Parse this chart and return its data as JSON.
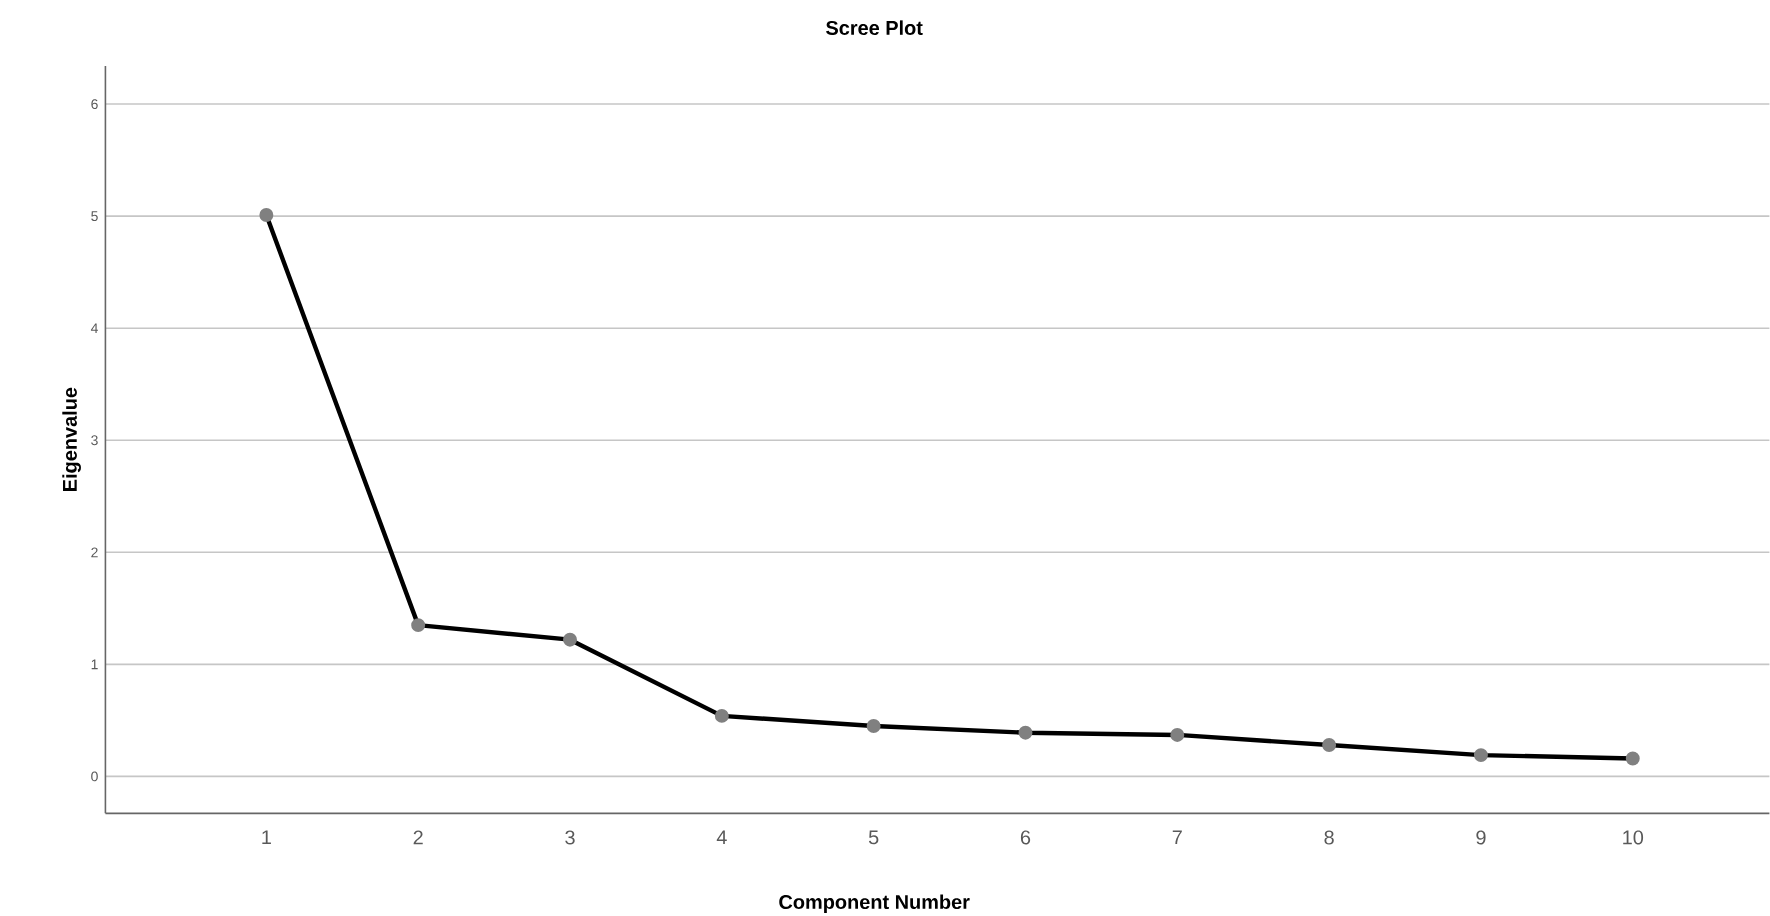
{
  "chart_data": {
    "type": "line",
    "title": "Scree Plot",
    "xlabel": "Component Number",
    "ylabel": "Eigenvalue",
    "categories": [
      "1",
      "2",
      "3",
      "4",
      "5",
      "6",
      "7",
      "8",
      "9",
      "10"
    ],
    "series": [
      {
        "color": "#000000",
        "values": [
          5.01,
          1.35,
          1.22,
          0.54,
          0.45,
          0.39,
          0.37,
          0.28,
          0.19,
          0.16
        ]
      }
    ],
    "ylim": [
      -0.33,
      6.34
    ],
    "yticks": [
      0,
      1,
      2,
      3,
      4,
      5,
      6
    ],
    "grid": "y",
    "marker": "circle",
    "line_style": "solid"
  }
}
